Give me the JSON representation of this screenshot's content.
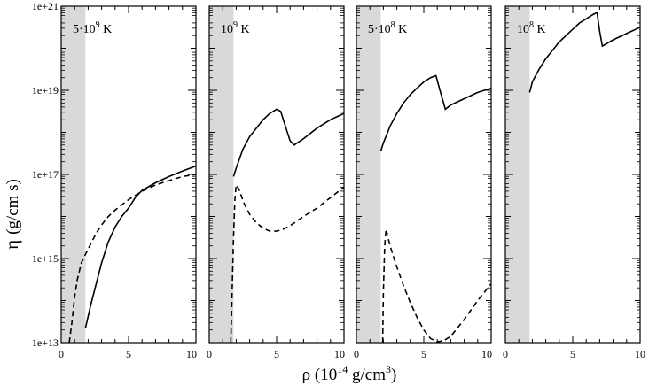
{
  "chart_data": {
    "type": "line",
    "yscale": "log",
    "ylabel_symbol": "η",
    "ylabel_units": "(g/cm s)",
    "xlabel_pre": "ρ (10",
    "xlabel_exp": "14",
    "xlabel_mid": " g/cm",
    "xlabel_sup": "3",
    "xlabel_post": ")",
    "xlim": [
      0,
      10
    ],
    "ylim_log10": [
      13,
      21
    ],
    "x_ticks": [
      0,
      5,
      10
    ],
    "x_tick_labels": [
      "0",
      "5",
      "10"
    ],
    "y_ticks_log10": [
      13,
      15,
      17,
      19,
      21
    ],
    "y_tick_labels": [
      "1e+13",
      "1e+15",
      "1e+17",
      "1e+19",
      "1e+21"
    ],
    "shaded_band_x": [
      0,
      1.8
    ],
    "shade_color": "#d9d9d9",
    "line_color": "#000000",
    "panels": [
      {
        "label_pre": "5·10",
        "label_exp": "9",
        "label_post": " K",
        "series": [
          {
            "name": "solid",
            "style": "solid",
            "x": [
              1.8,
              2.2,
              2.6,
              3.0,
              3.5,
              4.0,
              4.5,
              5.0,
              5.5,
              6.0,
              7.0,
              8.0,
              9.0,
              10.0
            ],
            "log10_y": [
              13.35,
              13.9,
              14.4,
              14.9,
              15.4,
              15.75,
              16.0,
              16.2,
              16.45,
              16.62,
              16.8,
              16.95,
              17.08,
              17.2
            ]
          },
          {
            "name": "dashed",
            "style": "dashed",
            "x": [
              0.6,
              0.8,
              1.0,
              1.2,
              1.5,
              1.8,
              2.2,
              2.6,
              3.0,
              3.5,
              4.0,
              5.0,
              6.0,
              7.0,
              8.0,
              9.0,
              10.0
            ],
            "log10_y": [
              13.0,
              13.5,
              14.1,
              14.5,
              14.9,
              15.1,
              15.35,
              15.6,
              15.8,
              16.0,
              16.15,
              16.4,
              16.6,
              16.75,
              16.85,
              16.95,
              17.0
            ]
          }
        ]
      },
      {
        "label_pre": "10",
        "label_exp": "9",
        "label_post": " K",
        "series": [
          {
            "name": "solid",
            "style": "solid",
            "x": [
              1.8,
              2.0,
              2.5,
              3.0,
              3.5,
              4.0,
              4.5,
              5.0,
              5.3,
              5.6,
              6.0,
              6.3,
              7.0,
              8.0,
              9.0,
              10.0
            ],
            "log10_y": [
              16.95,
              17.15,
              17.6,
              17.9,
              18.1,
              18.3,
              18.45,
              18.55,
              18.5,
              18.2,
              17.8,
              17.7,
              17.85,
              18.1,
              18.3,
              18.45
            ]
          },
          {
            "name": "dashed",
            "style": "dashed",
            "x": [
              1.6,
              1.8,
              1.9,
              2.0,
              2.2,
              2.6,
              3.0,
              3.5,
              4.0,
              4.5,
              5.0,
              5.5,
              6.0,
              7.0,
              8.0,
              9.0,
              10.0
            ],
            "log10_y": [
              13.0,
              15.5,
              16.4,
              16.75,
              16.65,
              16.3,
              16.05,
              15.85,
              15.72,
              15.65,
              15.65,
              15.7,
              15.78,
              16.0,
              16.2,
              16.45,
              16.7
            ]
          }
        ]
      },
      {
        "label_pre": "5·10",
        "label_exp": "8",
        "label_post": " K",
        "series": [
          {
            "name": "solid",
            "style": "solid",
            "x": [
              1.8,
              2.0,
              2.5,
              3.0,
              3.5,
              4.0,
              4.5,
              5.0,
              5.5,
              5.9,
              6.2,
              6.6,
              7.0,
              8.0,
              9.0,
              10.0
            ],
            "log10_y": [
              17.55,
              17.75,
              18.15,
              18.45,
              18.7,
              18.9,
              19.05,
              19.2,
              19.3,
              19.35,
              19.0,
              18.55,
              18.65,
              18.8,
              18.95,
              19.05
            ]
          },
          {
            "name": "dashed",
            "style": "dashed",
            "x": [
              1.95,
              2.0,
              2.1,
              2.2,
              2.5,
              3.0,
              3.5,
              4.0,
              4.5,
              5.0,
              5.5,
              6.0,
              6.5,
              7.0,
              7.5,
              8.0,
              9.0,
              10.0
            ],
            "log10_y": [
              13.0,
              14.2,
              15.3,
              15.7,
              15.3,
              14.8,
              14.35,
              13.95,
              13.6,
              13.3,
              13.1,
              13.02,
              13.05,
              13.15,
              13.35,
              13.55,
              14.0,
              14.4
            ]
          }
        ]
      },
      {
        "label_pre": "10",
        "label_exp": "8",
        "label_post": " K",
        "series": [
          {
            "name": "solid",
            "style": "solid",
            "x": [
              1.8,
              2.0,
              2.5,
              3.0,
              3.5,
              4.0,
              4.5,
              5.0,
              5.5,
              6.0,
              6.5,
              6.8,
              7.0,
              7.2,
              8.0,
              9.0,
              10.0
            ],
            "log10_y": [
              18.95,
              19.2,
              19.5,
              19.75,
              19.95,
              20.15,
              20.3,
              20.45,
              20.6,
              20.7,
              20.8,
              20.85,
              20.4,
              20.05,
              20.2,
              20.35,
              20.5
            ]
          }
        ]
      }
    ]
  }
}
